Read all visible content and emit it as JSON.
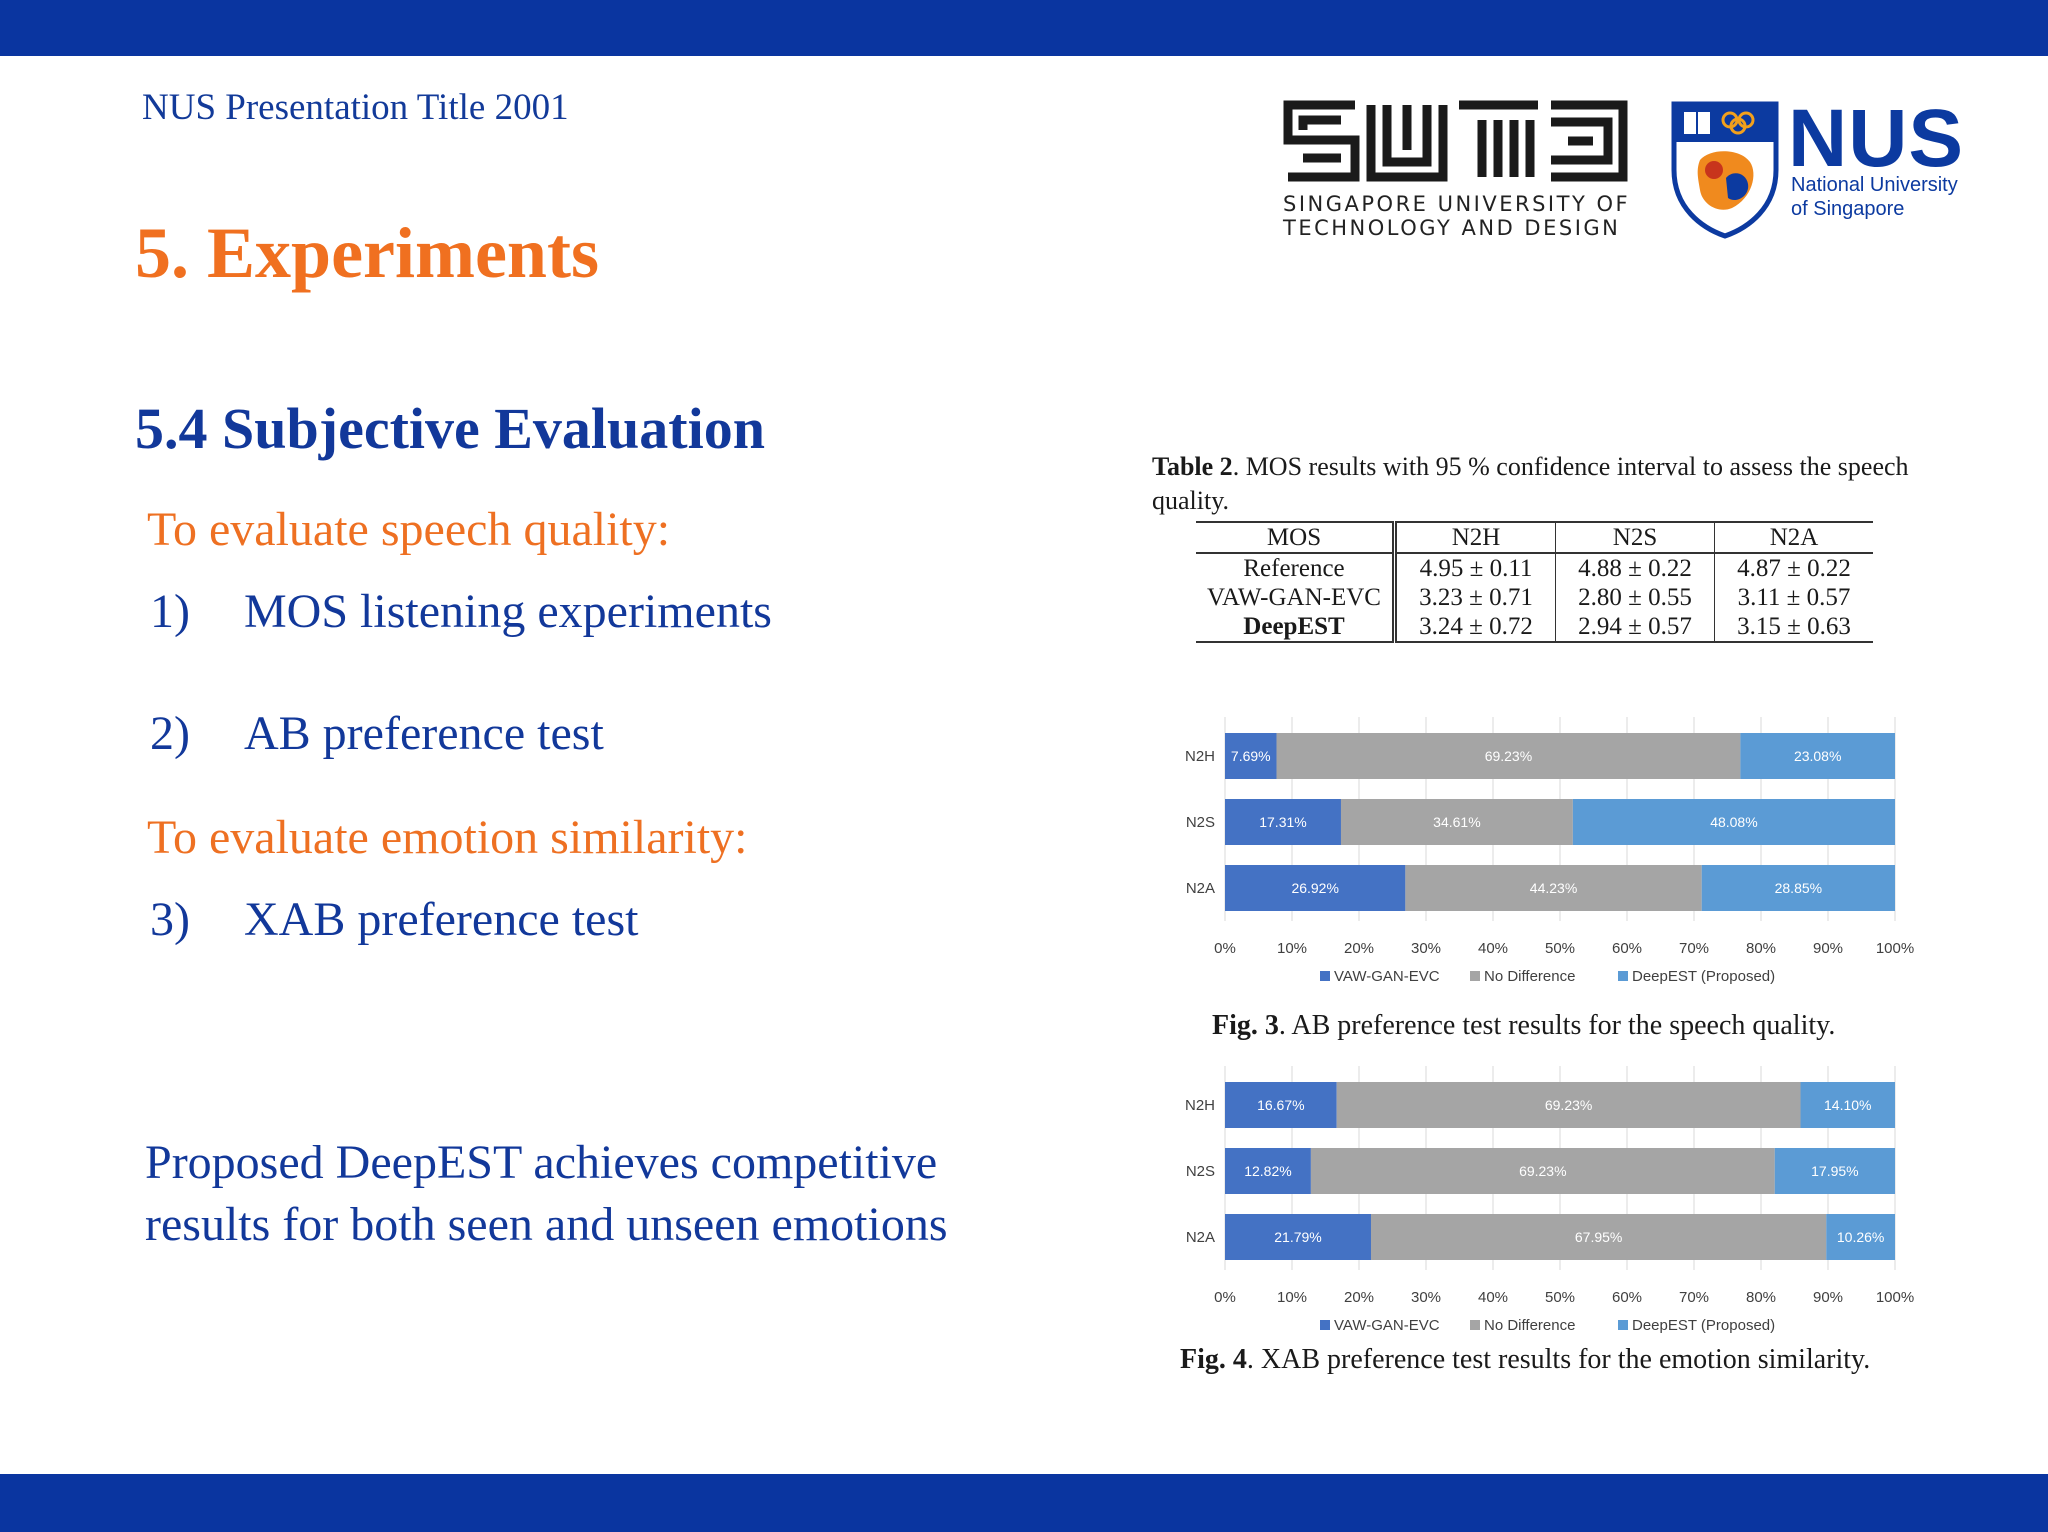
{
  "header": {
    "title": "NUS Presentation Title 2001"
  },
  "slide": {
    "title": "5. Experiments",
    "section": "5.4  Subjective Evaluation",
    "quality_heading": "To evaluate speech quality:",
    "items": [
      {
        "num": "1)",
        "text": "MOS listening experiments"
      },
      {
        "num": "2)",
        "text": "AB preference test"
      },
      {
        "num": "3)",
        "text": "XAB preference test"
      }
    ],
    "emotion_heading": "To evaluate emotion similarity:",
    "conclusion_line1": "Proposed DeepEST achieves competitive",
    "conclusion_line2": "results for both seen and unseen emotions"
  },
  "logos": {
    "sutd_line1": "SINGAPORE UNIVERSITY OF",
    "sutd_line2": "TECHNOLOGY AND DESIGN",
    "nus_word": "NUS",
    "nus_line1": "National University",
    "nus_line2": "of Singapore"
  },
  "table": {
    "caption_label": "Table 2",
    "caption_text": ". MOS results with 95 % confidence interval to assess the speech quality.",
    "header": [
      "MOS",
      "N2H",
      "N2S",
      "N2A"
    ],
    "rows": [
      [
        "Reference",
        "4.95 ± 0.11",
        "4.88 ± 0.22",
        "4.87 ± 0.22"
      ],
      [
        "VAW-GAN-EVC",
        "3.23 ± 0.71",
        "2.80 ± 0.55",
        "3.11 ± 0.57"
      ],
      [
        "DeepEST",
        "3.24 ± 0.72",
        "2.94 ± 0.57",
        "3.15 ± 0.63"
      ]
    ]
  },
  "fig3": {
    "label": "Fig. 3",
    "text": ". AB preference test results for the speech quality."
  },
  "fig4": {
    "label": "Fig. 4",
    "text": ". XAB preference test results for the emotion similarity."
  },
  "chart_data": [
    {
      "type": "bar",
      "orientation": "horizontal-stacked",
      "categories": [
        "N2H",
        "N2S",
        "N2A"
      ],
      "series": [
        {
          "name": "VAW-GAN-EVC",
          "values": [
            7.69,
            17.31,
            26.92
          ],
          "labels": [
            "7.69%",
            "17.31%",
            "26.92%"
          ],
          "color": "#4472c4"
        },
        {
          "name": "No Difference",
          "values": [
            69.23,
            34.61,
            44.23
          ],
          "labels": [
            "69.23%",
            "34.61%",
            "44.23%"
          ],
          "color": "#a5a5a5"
        },
        {
          "name": "DeepEST (Proposed)",
          "values": [
            23.08,
            48.08,
            28.85
          ],
          "labels": [
            "23.08%",
            "48.08%",
            "28.85%"
          ],
          "color": "#5b9bd5"
        }
      ],
      "xticks": [
        "0%",
        "10%",
        "20%",
        "30%",
        "40%",
        "50%",
        "60%",
        "70%",
        "80%",
        "90%",
        "100%"
      ],
      "xlim": [
        0,
        100
      ],
      "legend": "bottom"
    },
    {
      "type": "bar",
      "orientation": "horizontal-stacked",
      "categories": [
        "N2H",
        "N2S",
        "N2A"
      ],
      "series": [
        {
          "name": "VAW-GAN-EVC",
          "values": [
            16.67,
            12.82,
            21.79
          ],
          "labels": [
            "16.67%",
            "12.82%",
            "21.79%"
          ],
          "color": "#4472c4"
        },
        {
          "name": "No Difference",
          "values": [
            69.23,
            69.23,
            67.95
          ],
          "labels": [
            "69.23%",
            "69.23%",
            "67.95%"
          ],
          "color": "#a5a5a5"
        },
        {
          "name": "DeepEST (Proposed)",
          "values": [
            14.1,
            17.95,
            10.26
          ],
          "labels": [
            "14.10%",
            "17.95%",
            "10.26%"
          ],
          "color": "#5b9bd5"
        }
      ],
      "xticks": [
        "0%",
        "10%",
        "20%",
        "30%",
        "40%",
        "50%",
        "60%",
        "70%",
        "80%",
        "90%",
        "100%"
      ],
      "xlim": [
        0,
        100
      ],
      "legend": "bottom"
    }
  ]
}
